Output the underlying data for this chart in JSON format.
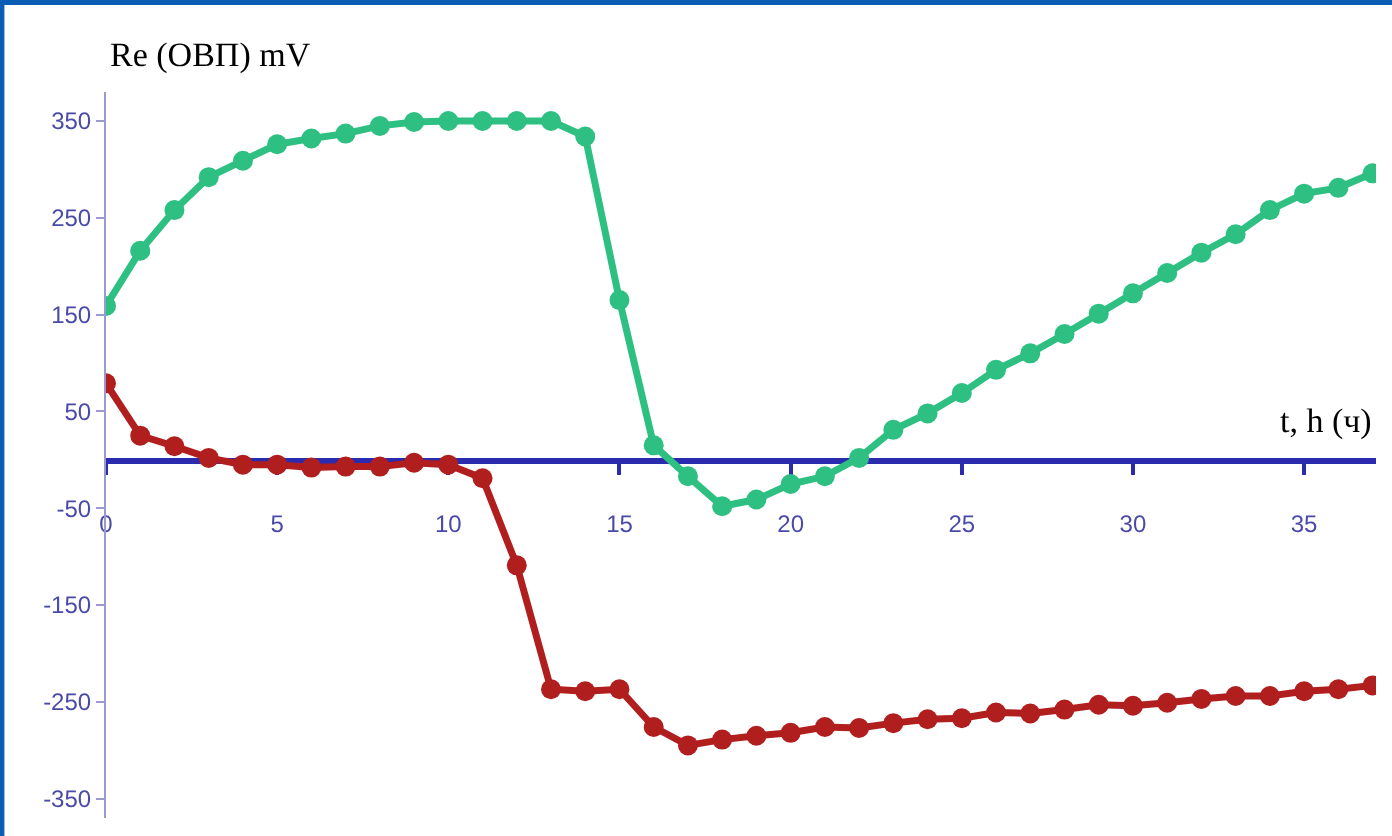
{
  "chart_data": {
    "type": "line",
    "xlabel": "t, h (ч)",
    "ylabel": "Re (ОВП) mV",
    "x": [
      0,
      1,
      2,
      3,
      4,
      5,
      6,
      7,
      8,
      9,
      10,
      11,
      12,
      13,
      14,
      15,
      16,
      17,
      18,
      19,
      20,
      21,
      22,
      23,
      24,
      25,
      26,
      27,
      28,
      29,
      30,
      31,
      32,
      33,
      34,
      35,
      36,
      37
    ],
    "series": [
      {
        "color": "#2ebf82",
        "values": [
          159,
          216,
          258,
          292,
          309,
          326,
          332,
          337,
          345,
          349,
          350,
          350,
          350,
          350,
          334,
          165,
          15,
          -17,
          -48,
          -41,
          -25,
          -17,
          2,
          31,
          48,
          69,
          93,
          110,
          130,
          151,
          172,
          193,
          214,
          233,
          258,
          275,
          281,
          296
        ]
      },
      {
        "color": "#b01e1e",
        "values": [
          79,
          25,
          14,
          2,
          -5,
          -5,
          -8,
          -7,
          -7,
          -3,
          -5,
          -19,
          -109,
          -237,
          -239,
          -237,
          -276,
          -295,
          -289,
          -285,
          -282,
          -276,
          -277,
          -272,
          -268,
          -267,
          -261,
          -262,
          -258,
          -253,
          -254,
          -251,
          -247,
          -244,
          -244,
          -239,
          -237,
          -233
        ]
      }
    ],
    "xlim": [
      0,
      37.1
    ],
    "xticks": [
      0,
      5,
      10,
      15,
      20,
      25,
      30,
      35
    ],
    "ylim": [
      -370,
      380
    ],
    "yticks": [
      -350,
      -250,
      -150,
      -50,
      50,
      150,
      250,
      350
    ],
    "marker": "circle",
    "line_style": "solid"
  }
}
